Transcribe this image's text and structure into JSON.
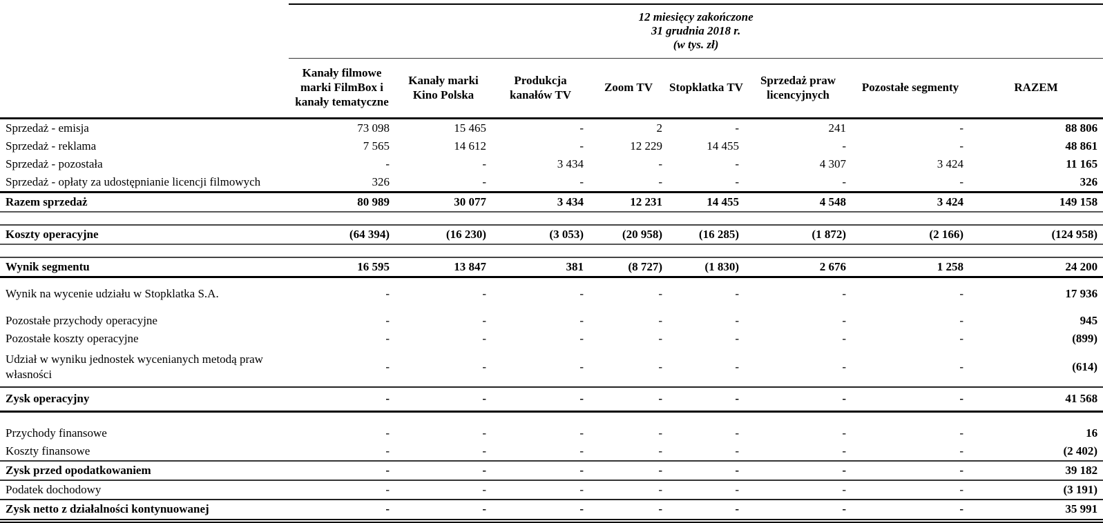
{
  "table": {
    "period": {
      "line1": "12 miesięcy zakończone",
      "line2": "31 grudnia 2018 r.",
      "line3": "(w tys. zł)"
    },
    "columns": [
      "Kanały filmowe marki FilmBox i kanały tematyczne",
      "Kanały marki Kino Polska",
      "Produkcja kanałów TV",
      "Zoom TV",
      "Stopklatka TV",
      "Sprzedaż praw licencyjnych",
      "Pozostałe segmenty",
      "RAZEM"
    ],
    "rows": [
      {
        "label": "Sprzedaż - emisja",
        "bold": false,
        "cells": [
          "73 098",
          "15 465",
          "-",
          "2",
          "-",
          "241",
          "-",
          "88 806"
        ]
      },
      {
        "label": "Sprzedaż - reklama",
        "bold": false,
        "cells": [
          "7 565",
          "14 612",
          "-",
          "12 229",
          "14 455",
          "-",
          "-",
          "48 861"
        ]
      },
      {
        "label": "Sprzedaż - pozostała",
        "bold": false,
        "cells": [
          "-",
          "-",
          "3 434",
          "-",
          "-",
          "4 307",
          "3 424",
          "11 165"
        ]
      },
      {
        "label": "Sprzedaż - opłaty za udostępnianie licencji filmowych",
        "bold": false,
        "cells": [
          "326",
          "-",
          "-",
          "-",
          "-",
          "-",
          "-",
          "326"
        ]
      },
      {
        "label": "Razem sprzedaż",
        "bold": true,
        "cells": [
          "80 989",
          "30 077",
          "3 434",
          "12 231",
          "14 455",
          "4 548",
          "3 424",
          "149 158"
        ]
      },
      {
        "label": "Koszty operacyjne",
        "bold": true,
        "cells": [
          "(64 394)",
          "(16 230)",
          "(3 053)",
          "(20 958)",
          "(16 285)",
          "(1 872)",
          "(2 166)",
          "(124 958)"
        ]
      },
      {
        "label": "Wynik segmentu",
        "bold": true,
        "cells": [
          "16 595",
          "13 847",
          "381",
          "(8 727)",
          "(1 830)",
          "2 676",
          "1 258",
          "24 200"
        ]
      },
      {
        "label": "Wynik na wycenie udziału w Stopklatka S.A.",
        "bold": false,
        "cells": [
          "-",
          "-",
          "-",
          "-",
          "-",
          "-",
          "-",
          "17 936"
        ]
      },
      {
        "label": "Pozostałe przychody operacyjne",
        "bold": false,
        "cells": [
          "-",
          "-",
          "-",
          "-",
          "-",
          "-",
          "-",
          "945"
        ]
      },
      {
        "label": "Pozostałe koszty operacyjne",
        "bold": false,
        "cells": [
          "-",
          "-",
          "-",
          "-",
          "-",
          "-",
          "-",
          "(899)"
        ]
      },
      {
        "label": "Udział w wyniku jednostek wycenianych metodą praw własności",
        "bold": false,
        "cells": [
          "-",
          "-",
          "-",
          "-",
          "-",
          "-",
          "-",
          "(614)"
        ]
      },
      {
        "label": "Zysk operacyjny",
        "bold": true,
        "cells": [
          "-",
          "-",
          "-",
          "-",
          "-",
          "-",
          "-",
          "41 568"
        ]
      },
      {
        "label": "Przychody finansowe",
        "bold": false,
        "cells": [
          "-",
          "-",
          "-",
          "-",
          "-",
          "-",
          "-",
          "16"
        ]
      },
      {
        "label": "Koszty finansowe",
        "bold": false,
        "cells": [
          "-",
          "-",
          "-",
          "-",
          "-",
          "-",
          "-",
          "(2 402)"
        ]
      },
      {
        "label": "Zysk przed opodatkowaniem",
        "bold": true,
        "cells": [
          "-",
          "-",
          "-",
          "-",
          "-",
          "-",
          "-",
          "39 182"
        ]
      },
      {
        "label": "Podatek dochodowy",
        "bold": false,
        "cells": [
          "-",
          "-",
          "-",
          "-",
          "-",
          "-",
          "-",
          "(3 191)"
        ]
      },
      {
        "label": "Zysk netto z działalności kontynuowanej",
        "bold": true,
        "cells": [
          "-",
          "-",
          "-",
          "-",
          "-",
          "-",
          "-",
          "35 991"
        ]
      }
    ]
  }
}
